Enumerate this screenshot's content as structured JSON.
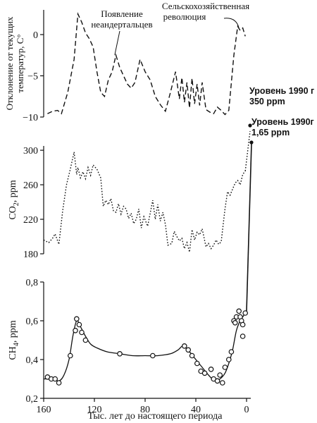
{
  "chart_data": [
    {
      "id": "temperature",
      "type": "line",
      "style": "dashed",
      "ylabel_lines": [
        "Отклонение от текущих",
        "температур, С°"
      ],
      "yticks": [
        0,
        -5,
        -10
      ],
      "ylim": [
        -10,
        3
      ],
      "xlim": [
        160,
        0
      ],
      "x": [
        157,
        153,
        149,
        146,
        141,
        136,
        133,
        130,
        127,
        124,
        121,
        118,
        115,
        112,
        109,
        106,
        103,
        100,
        97,
        94,
        91,
        88,
        84,
        80,
        76,
        72,
        68,
        64,
        60,
        56,
        53,
        51,
        49,
        47,
        45,
        43,
        41,
        39,
        37,
        35,
        32,
        29,
        26,
        23,
        20,
        17,
        14,
        10,
        7,
        5,
        3,
        1
      ],
      "y": [
        -9.6,
        -9.3,
        -9.2,
        -9.6,
        -7,
        -3,
        2.5,
        1.5,
        0.2,
        -0.5,
        -1.5,
        -4.5,
        -7,
        -7.5,
        -5.5,
        -4.5,
        -2.5,
        -4,
        -5,
        -6,
        -6.5,
        -5.8,
        -3,
        -4.5,
        -5.5,
        -7.5,
        -8.5,
        -9.3,
        -7,
        -4.5,
        -7.8,
        -5.2,
        -8.2,
        -5.8,
        -8.9,
        -5.3,
        -8.4,
        -6,
        -8.6,
        -5.8,
        -9.1,
        -9.4,
        -9.6,
        -8.8,
        -9.2,
        -9.7,
        -9.2,
        -2.5,
        1,
        0.5,
        0.8,
        -0.2
      ],
      "annotations": [
        {
          "lines": [
            "Появление",
            "неандертальцев"
          ],
          "x": 104,
          "y": -2.5
        },
        {
          "lines": [
            "Сельскохозяйственная",
            "революция"
          ],
          "x": 6,
          "y": 0.8
        }
      ]
    },
    {
      "id": "co2",
      "type": "line",
      "style": "dotted",
      "ylabel": "CO",
      "ylabel_sub": "2",
      "ylabel_unit": ", ppm",
      "yticks": [
        180,
        220,
        260,
        300
      ],
      "ylim": [
        180,
        305
      ],
      "xlim": [
        160,
        0
      ],
      "x": [
        160,
        156,
        153,
        151,
        148,
        145,
        142,
        139,
        136,
        134,
        133,
        131,
        129,
        127,
        125,
        123,
        121,
        118,
        115,
        113,
        111,
        109,
        107,
        105,
        103,
        101,
        99,
        97,
        95,
        93,
        91,
        89,
        87,
        85,
        83,
        81,
        78,
        76,
        74,
        72,
        70,
        68,
        66,
        64,
        62,
        59,
        57,
        55,
        53,
        51,
        49,
        47,
        45,
        43,
        41,
        39,
        37,
        35,
        32,
        30,
        28,
        26,
        24,
        22,
        20,
        17,
        15,
        13,
        11,
        9,
        7,
        5,
        3,
        2,
        1
      ],
      "y": [
        196,
        193,
        198,
        203,
        191,
        230,
        260,
        278,
        298,
        272,
        280,
        268,
        275,
        267,
        280,
        271,
        283,
        278,
        268,
        235,
        242,
        237,
        244,
        230,
        228,
        238,
        226,
        235,
        232,
        221,
        227,
        215,
        220,
        232,
        210,
        223,
        212,
        227,
        242,
        220,
        237,
        218,
        228,
        214,
        190,
        192,
        206,
        200,
        195,
        198,
        186,
        193,
        182,
        208,
        196,
        205,
        202,
        209,
        188,
        192,
        186,
        190,
        196,
        191,
        194,
        232,
        252,
        248,
        255,
        262,
        265,
        260,
        272,
        274,
        276
      ],
      "current_level": {
        "lines": [
          "Уровень 1990 г",
          "350 ppm"
        ],
        "value": 350,
        "x": 0
      }
    },
    {
      "id": "ch4",
      "type": "scatter",
      "style": "points-with-smooth-curve",
      "ylabel": "CH",
      "ylabel_sub": "4",
      "ylabel_unit": ", ppm",
      "yticks": [
        "0,2",
        "0,4",
        "0,6",
        "0,8"
      ],
      "ytick_values": [
        0.2,
        0.4,
        0.6,
        0.8
      ],
      "ylim": [
        0.2,
        0.8
      ],
      "xlim": [
        160,
        0
      ],
      "xticks": [
        160,
        120,
        80,
        40,
        0
      ],
      "xlabel": "Тыс. лет до настоящего периода",
      "points_x": [
        157,
        154,
        151,
        148,
        139,
        135,
        134,
        132,
        130,
        127,
        100,
        74,
        49,
        46,
        43,
        39,
        36,
        33,
        28,
        26,
        23,
        21,
        19,
        17,
        14,
        12,
        10,
        9,
        8,
        6,
        5,
        4,
        3,
        1,
        3
      ],
      "points_y": [
        0.31,
        0.3,
        0.3,
        0.28,
        0.42,
        0.55,
        0.61,
        0.58,
        0.54,
        0.5,
        0.43,
        0.42,
        0.47,
        0.45,
        0.42,
        0.38,
        0.34,
        0.33,
        0.35,
        0.3,
        0.29,
        0.32,
        0.28,
        0.36,
        0.4,
        0.44,
        0.6,
        0.59,
        0.62,
        0.65,
        0.62,
        0.6,
        0.58,
        0.64,
        0.52
      ],
      "curve_x": [
        160,
        154,
        148,
        144,
        140,
        137,
        134,
        131,
        127,
        123,
        118,
        110,
        100,
        90,
        80,
        70,
        60,
        54,
        50,
        45,
        40,
        35,
        30,
        25,
        21,
        17,
        14,
        11,
        8,
        5,
        3,
        1,
        0
      ],
      "curve_y": [
        0.3,
        0.3,
        0.29,
        0.32,
        0.4,
        0.52,
        0.6,
        0.57,
        0.52,
        0.48,
        0.46,
        0.44,
        0.43,
        0.42,
        0.42,
        0.42,
        0.43,
        0.45,
        0.47,
        0.44,
        0.4,
        0.36,
        0.32,
        0.29,
        0.3,
        0.33,
        0.38,
        0.45,
        0.55,
        0.6,
        0.62,
        0.64,
        0.65
      ],
      "current_level": {
        "lines": [
          "Уровень 1990г",
          "1,65 ppm"
        ],
        "value": 1.65,
        "x": 0
      }
    }
  ]
}
